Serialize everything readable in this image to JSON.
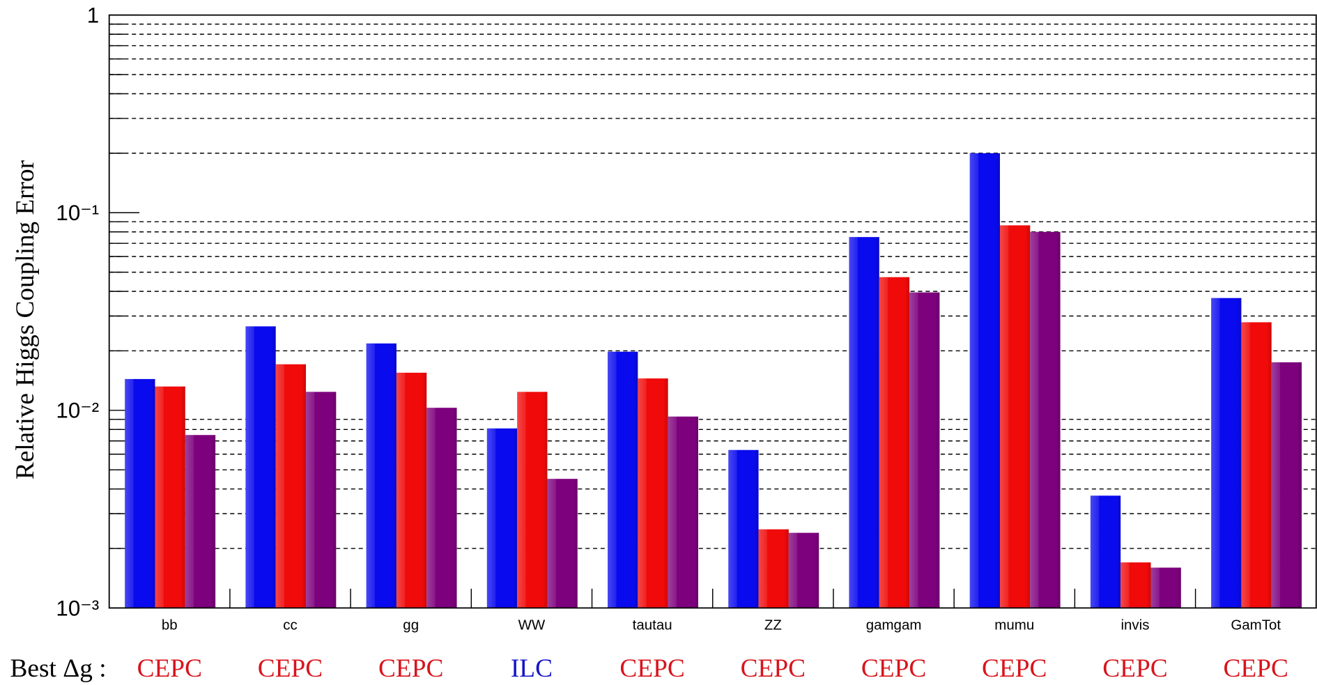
{
  "chart_data": {
    "type": "bar",
    "y_label": "Relative Higgs Coupling Error",
    "log_y": true,
    "grid": true,
    "ylim": [
      0.001,
      1
    ],
    "yticks": [
      {
        "value": 0.001,
        "label": "10⁻³"
      },
      {
        "value": 0.01,
        "label": "10⁻²"
      },
      {
        "value": 0.1,
        "label": "10⁻¹"
      },
      1
    ],
    "minor_yticks": [
      0.002,
      0.003,
      0.004,
      0.005,
      0.006,
      0.007,
      0.008,
      0.009,
      0.02,
      0.03,
      0.04,
      0.05,
      0.06,
      0.07,
      0.08,
      0.09,
      0.2,
      0.3,
      0.4,
      0.5,
      0.6,
      0.7,
      0.8,
      0.9
    ],
    "categories": [
      "bb",
      "cc",
      "gg",
      "WW",
      "tautau",
      "ZZ",
      "gamgam",
      "mumu",
      "invis",
      "GamTot"
    ],
    "series": [
      {
        "color": "#0a0aee",
        "values": [
          0.0144,
          0.0266,
          0.0218,
          0.0081,
          0.0198,
          0.0063,
          0.0753,
          0.2,
          0.0037,
          0.037
        ]
      },
      {
        "color": "#f00a0a",
        "values": [
          0.0132,
          0.0171,
          0.0155,
          0.0124,
          0.0145,
          0.0025,
          0.0472,
          0.0863,
          0.0017,
          0.0279
        ]
      },
      {
        "color": "#7d007d",
        "values": [
          0.0075,
          0.0124,
          0.0103,
          0.0045,
          0.0093,
          0.0024,
          0.0395,
          0.08,
          0.0016,
          0.0175
        ]
      }
    ],
    "best_label": "Best Δg :",
    "best": [
      "CEPC",
      "CEPC",
      "CEPC",
      "ILC",
      "CEPC",
      "CEPC",
      "CEPC",
      "CEPC",
      "CEPC",
      "CEPC"
    ],
    "best_colors": [
      "#d8141c",
      "#d8141c",
      "#d8141c",
      "#1414c8",
      "#d8141c",
      "#d8141c",
      "#d8141c",
      "#d8141c",
      "#d8141c",
      "#d8141c"
    ]
  }
}
